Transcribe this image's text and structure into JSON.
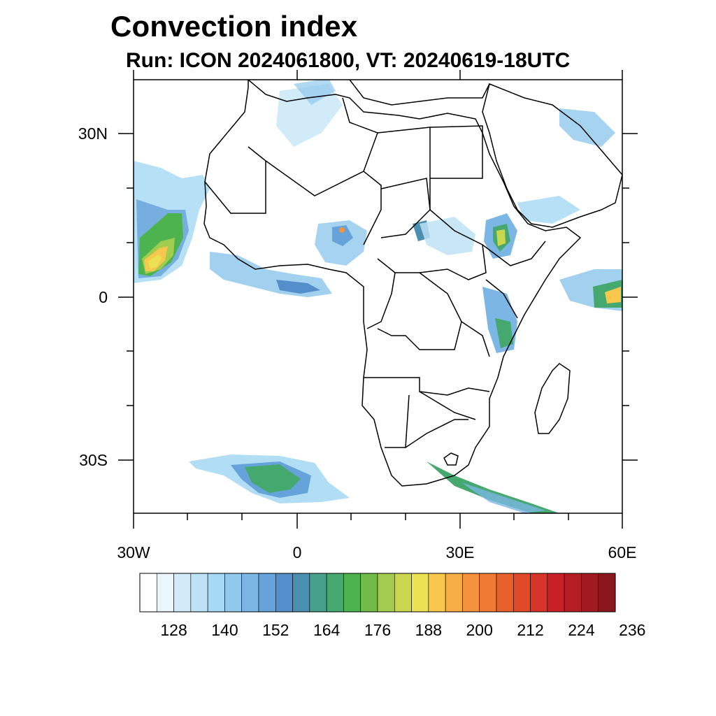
{
  "title": "Convection index",
  "subtitle": "Run: ICON 2024061800,  VT: 20240619-18UTC",
  "map": {
    "lat_labels": [
      "30N",
      "0",
      "30S"
    ],
    "lon_labels": [
      "30W",
      "0",
      "30E",
      "60E"
    ],
    "extent": {
      "lon_min": -30,
      "lon_max": 60,
      "lat_min": -40,
      "lat_max": 40
    },
    "coastline_color": "#000000"
  },
  "colorbar": {
    "labels": [
      "128",
      "140",
      "152",
      "164",
      "176",
      "188",
      "200",
      "212",
      "224",
      "236"
    ],
    "colors": [
      "#ffffff",
      "#eaf5fc",
      "#d3ebf8",
      "#bde2f5",
      "#a4d8f3",
      "#90c9ec",
      "#7bb6e4",
      "#66a3da",
      "#548fcc",
      "#4a8fb0",
      "#45a08c",
      "#45a86e",
      "#4db34e",
      "#72bb4a",
      "#a2cc4e",
      "#c9d64e",
      "#ece152",
      "#f7c84d",
      "#f6ad44",
      "#f4933c",
      "#ee7a33",
      "#e8612c",
      "#e14a29",
      "#d83328",
      "#c92027",
      "#b51c24",
      "#a11a20",
      "#8b171c"
    ]
  }
}
